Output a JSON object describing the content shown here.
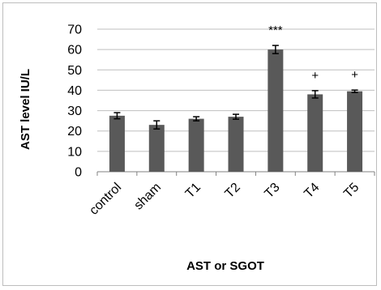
{
  "chart_data": {
    "type": "bar",
    "categories": [
      "control",
      "sham",
      "T1",
      "T2",
      "T3",
      "T4",
      "T5"
    ],
    "values": [
      27.5,
      23,
      26,
      27,
      60,
      38,
      39.5
    ],
    "errors": [
      1.5,
      2,
      1,
      1.2,
      2,
      1.8,
      0.6
    ],
    "annotations": [
      "",
      "",
      "",
      "",
      "***",
      "+",
      "+"
    ],
    "xlabel": "AST or SGOT",
    "ylabel": "AST level  IU/L",
    "ylim": [
      0,
      70
    ],
    "yticks": [
      0,
      10,
      20,
      30,
      40,
      50,
      60,
      70
    ],
    "grid": true,
    "legend": "none",
    "bar_color": "#595959",
    "grid_color": "#bfbfbf"
  }
}
